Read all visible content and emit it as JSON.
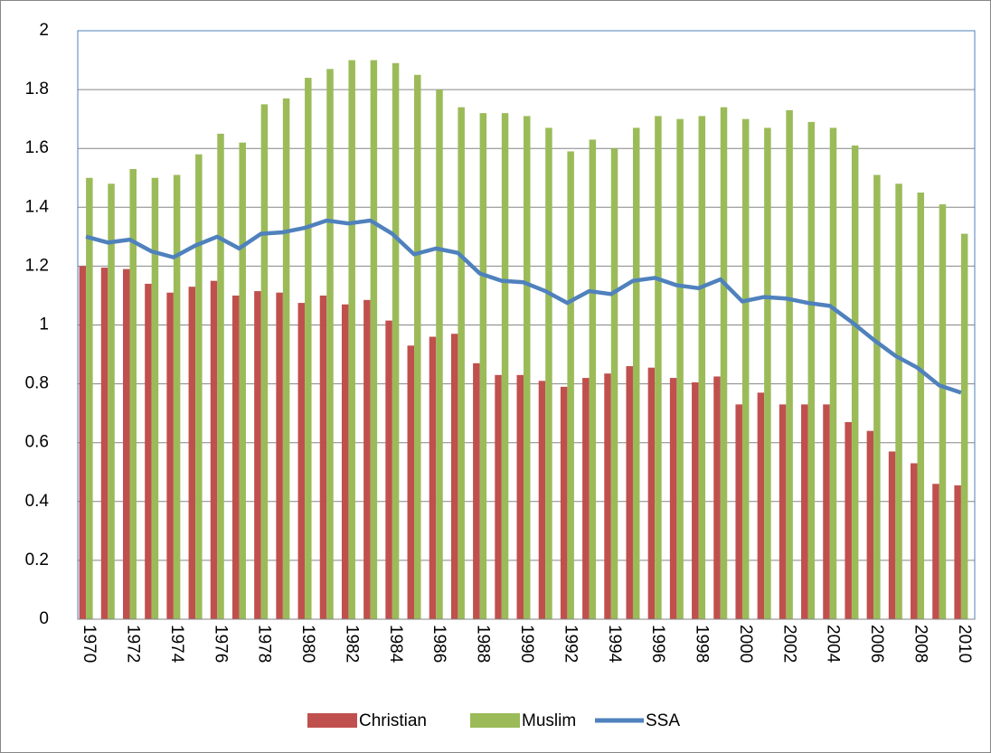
{
  "chart_data": {
    "type": "bar",
    "categories": [
      "1970",
      null,
      "1972",
      null,
      "1974",
      null,
      "1976",
      null,
      "1978",
      null,
      "1980",
      null,
      "1982",
      null,
      "1984",
      null,
      "1986",
      null,
      "1988",
      null,
      "1990",
      null,
      "1992",
      null,
      "1994",
      null,
      "1996",
      null,
      "1998",
      null,
      "2000",
      null,
      "2002",
      null,
      "2004",
      null,
      "2006",
      null,
      "2008",
      null,
      "2010"
    ],
    "series": [
      {
        "name": "Christian",
        "type": "bar",
        "color": "#c0504d",
        "values": [
          1.2,
          1.195,
          1.19,
          1.14,
          1.11,
          1.13,
          1.15,
          1.1,
          1.115,
          1.11,
          1.075,
          1.1,
          1.07,
          1.085,
          1.015,
          0.93,
          0.96,
          0.97,
          0.87,
          0.83,
          0.83,
          0.81,
          0.79,
          0.82,
          0.835,
          0.86,
          0.855,
          0.82,
          0.805,
          0.825,
          0.73,
          0.77,
          0.73,
          0.73,
          0.73,
          0.67,
          0.64,
          0.57,
          0.53,
          0.46,
          0.455
        ]
      },
      {
        "name": "Muslim",
        "type": "bar",
        "color": "#9bbb59",
        "values": [
          1.5,
          1.48,
          1.53,
          1.5,
          1.51,
          1.58,
          1.65,
          1.62,
          1.75,
          1.77,
          1.84,
          1.87,
          1.9,
          1.9,
          1.89,
          1.85,
          1.8,
          1.74,
          1.72,
          1.72,
          1.71,
          1.67,
          1.59,
          1.63,
          1.6,
          1.67,
          1.71,
          1.7,
          1.71,
          1.74,
          1.7,
          1.67,
          1.73,
          1.69,
          1.67,
          1.61,
          1.51,
          1.48,
          1.45,
          1.41,
          1.31
        ]
      },
      {
        "name": "SSA",
        "type": "line",
        "color": "#4f81bd",
        "values": [
          1.3,
          1.28,
          1.29,
          1.25,
          1.23,
          1.27,
          1.3,
          1.26,
          1.31,
          1.315,
          1.33,
          1.355,
          1.345,
          1.355,
          1.31,
          1.24,
          1.26,
          1.245,
          1.175,
          1.15,
          1.145,
          1.115,
          1.075,
          1.115,
          1.105,
          1.15,
          1.16,
          1.135,
          1.125,
          1.155,
          1.08,
          1.095,
          1.09,
          1.075,
          1.065,
          1.01,
          0.95,
          0.895,
          0.855,
          0.795,
          0.77
        ]
      }
    ],
    "ylim": [
      0,
      2
    ],
    "yticks": [
      0,
      0.2,
      0.4,
      0.6,
      0.8,
      1,
      1.2,
      1.4,
      1.6,
      1.8,
      2
    ],
    "grid": true,
    "legend": "bottom"
  }
}
